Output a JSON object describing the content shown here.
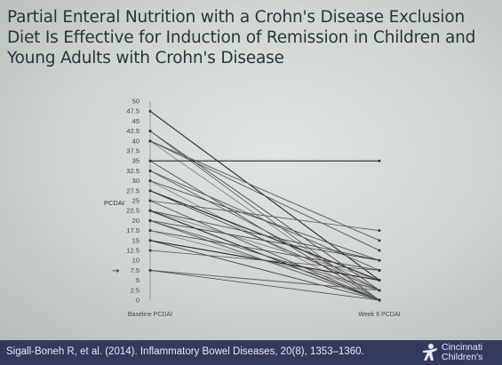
{
  "slide": {
    "title": "Partial Enteral Nutrition with a Crohn's Disease Exclusion Diet Is Effective for Induction of Remission in Children and Young Adults with Crohn's Disease"
  },
  "footer": {
    "citation": "Sigall-Boneh R, et al. (2014). Inflammatory Bowel Diseases, 20(8), 1353–1360.",
    "logo_line1": "Cincinnati",
    "logo_line2": "Children's"
  },
  "colors": {
    "footer_bg": "#343a5e",
    "line": "#333333",
    "background": "#d8dedb"
  },
  "chart_data": {
    "type": "line",
    "categories": [
      "Baseline PCDAI",
      "Week 6 PCDAI"
    ],
    "ylabel": "PCDAI",
    "xlabel": "",
    "title": "",
    "ylim": [
      0,
      50
    ],
    "yticks": [
      "0",
      "2.5",
      "5",
      "7.5",
      "10",
      "12.5",
      "15",
      "17.5",
      "20",
      "22.5",
      "25",
      "27.5",
      "30",
      "32.5",
      "35",
      "37.5",
      "40",
      "42.5",
      "45",
      "47.5",
      "50"
    ],
    "reference_marker_value": 7.5,
    "grid": false,
    "series": [
      {
        "values": [
          47.5,
          5
        ]
      },
      {
        "values": [
          42.5,
          2.5
        ]
      },
      {
        "values": [
          42.5,
          0
        ]
      },
      {
        "values": [
          40,
          15
        ]
      },
      {
        "values": [
          40,
          12.5
        ]
      },
      {
        "values": [
          40,
          0
        ]
      },
      {
        "values": [
          35,
          35
        ]
      },
      {
        "values": [
          35,
          0
        ]
      },
      {
        "values": [
          32.5,
          2.5
        ]
      },
      {
        "values": [
          32.5,
          7.5
        ]
      },
      {
        "values": [
          30,
          10
        ]
      },
      {
        "values": [
          30,
          0
        ]
      },
      {
        "values": [
          27.5,
          5
        ]
      },
      {
        "values": [
          27.5,
          2.5
        ]
      },
      {
        "values": [
          25,
          17.5
        ]
      },
      {
        "values": [
          25,
          0
        ]
      },
      {
        "values": [
          22.5,
          10
        ]
      },
      {
        "values": [
          22.5,
          5
        ]
      },
      {
        "values": [
          22.5,
          0
        ]
      },
      {
        "values": [
          20,
          10
        ]
      },
      {
        "values": [
          20,
          2.5
        ]
      },
      {
        "values": [
          20,
          0
        ]
      },
      {
        "values": [
          17.5,
          7.5
        ]
      },
      {
        "values": [
          17.5,
          2.5
        ]
      },
      {
        "values": [
          15,
          5
        ]
      },
      {
        "values": [
          15,
          0
        ]
      },
      {
        "values": [
          12.5,
          7.5
        ]
      },
      {
        "values": [
          7.5,
          2.5
        ]
      },
      {
        "values": [
          7.5,
          0
        ]
      }
    ]
  }
}
